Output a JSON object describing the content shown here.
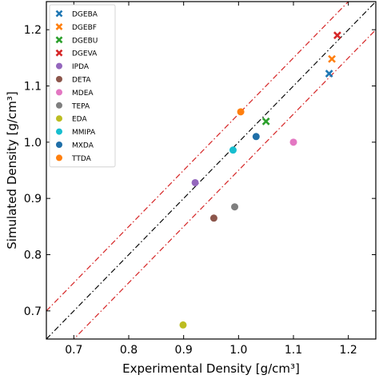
{
  "chart_data": {
    "type": "scatter",
    "xlabel": "Experimental Density [g/cm³]",
    "ylabel": "Simulated Density [g/cm³]",
    "xlim": [
      0.65,
      1.25
    ],
    "ylim": [
      0.65,
      1.25
    ],
    "xticks": [
      "0.7",
      "0.8",
      "0.9",
      "1.0",
      "1.1",
      "1.2"
    ],
    "yticks": [
      "0.7",
      "0.8",
      "0.9",
      "1.0",
      "1.1",
      "1.2"
    ],
    "grid": false,
    "legend_position": "top-left",
    "reference_lines": [
      {
        "kind": "identity",
        "style": "dash-dot",
        "color": "#000000",
        "offset": 0
      },
      {
        "kind": "tolerance-upper",
        "style": "dash-dot",
        "color": "#d62728",
        "offset": 0.05
      },
      {
        "kind": "tolerance-lower",
        "style": "dash-dot",
        "color": "#d62728",
        "offset": -0.05
      }
    ],
    "series": [
      {
        "name": "DGEBA",
        "marker": "x",
        "color": "#1f77b4",
        "points": [
          [
            1.165,
            1.122
          ]
        ]
      },
      {
        "name": "DGEBF",
        "marker": "x",
        "color": "#ff7f0e",
        "points": [
          [
            1.17,
            1.148
          ]
        ]
      },
      {
        "name": "DGEBU",
        "marker": "x",
        "color": "#2ca02c",
        "points": [
          [
            1.05,
            1.037
          ]
        ]
      },
      {
        "name": "DGEVA",
        "marker": "x",
        "color": "#d62728",
        "points": [
          [
            1.18,
            1.19
          ]
        ]
      },
      {
        "name": "IPDA",
        "marker": "o",
        "color": "#9467bd",
        "points": [
          [
            0.921,
            0.928
          ]
        ]
      },
      {
        "name": "DETA",
        "marker": "o",
        "color": "#8c564b",
        "points": [
          [
            0.955,
            0.865
          ]
        ]
      },
      {
        "name": "MDEA",
        "marker": "o",
        "color": "#e377c2",
        "points": [
          [
            1.1,
            1.0
          ]
        ]
      },
      {
        "name": "TEPA",
        "marker": "o",
        "color": "#7f7f7f",
        "points": [
          [
            0.993,
            0.885
          ]
        ]
      },
      {
        "name": "EDA",
        "marker": "o",
        "color": "#bcbd22",
        "points": [
          [
            0.899,
            0.675
          ]
        ]
      },
      {
        "name": "MMIPA",
        "marker": "o",
        "color": "#17becf",
        "points": [
          [
            0.99,
            0.986
          ]
        ]
      },
      {
        "name": "MXDA",
        "marker": "o",
        "color": "#1f6fa8",
        "points": [
          [
            1.032,
            1.01
          ]
        ]
      },
      {
        "name": "TTDA",
        "marker": "o",
        "color": "#ff7f0e",
        "points": [
          [
            1.004,
            1.054
          ]
        ]
      }
    ]
  }
}
